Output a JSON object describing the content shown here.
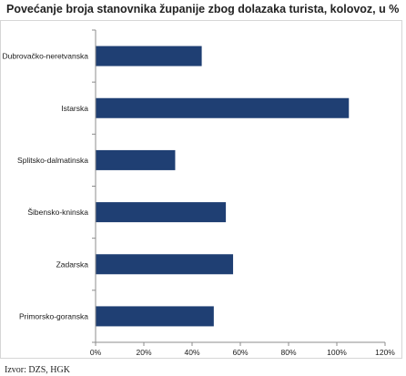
{
  "title": "Povećanje broja stanovnika županije zbog dolazaka turista, kolovoz, u %",
  "source": "Izvor: DZS, HGK",
  "chart_data": {
    "type": "bar",
    "orientation": "horizontal",
    "categories": [
      "Dubrovačko-neretvanska",
      "Istarska",
      "Splitsko-dalmatinska",
      "Šibensko-kninska",
      "Zadarska",
      "Primorsko-goranska"
    ],
    "values": [
      44,
      105,
      33,
      54,
      57,
      49
    ],
    "xlim": [
      0,
      120
    ],
    "x_ticks": [
      "0%",
      "20%",
      "40%",
      "60%",
      "80%",
      "100%",
      "120%"
    ],
    "bar_color": "#1f3f73",
    "grid": false,
    "legend": "none"
  }
}
